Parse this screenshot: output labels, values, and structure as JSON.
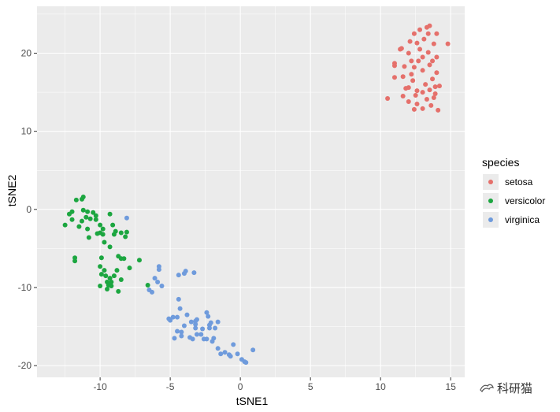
{
  "chart_data": {
    "type": "scatter",
    "title": "",
    "xlabel": "tSNE1",
    "ylabel": "tSNE2",
    "xlim": [
      -14.5,
      16
    ],
    "ylim": [
      -21.5,
      26
    ],
    "x_ticks": [
      -10,
      -5,
      0,
      5,
      10,
      15
    ],
    "x_tick_labels": [
      "-10",
      "-5",
      "0",
      "5",
      "10",
      "15"
    ],
    "y_ticks": [
      -20,
      -10,
      0,
      10,
      20
    ],
    "y_tick_labels": [
      "-20",
      "-10",
      "0",
      "10",
      "20"
    ],
    "grid": true,
    "legend": {
      "title": "species",
      "position": "right"
    },
    "colors": {
      "setosa": "#e5706b",
      "versicolor": "#1ca640",
      "virginica": "#6f9bdc",
      "panel": "#ebebeb",
      "grid": "#ffffff"
    },
    "series": [
      {
        "name": "setosa",
        "points": [
          [
            10.5,
            14.2
          ],
          [
            11,
            16.9
          ],
          [
            11,
            18.4
          ],
          [
            11,
            18.7
          ],
          [
            11.4,
            20.5
          ],
          [
            11.5,
            20.6
          ],
          [
            11.6,
            17
          ],
          [
            11.6,
            14.5
          ],
          [
            11.7,
            18.3
          ],
          [
            11.8,
            15.5
          ],
          [
            12,
            13.8
          ],
          [
            12,
            15.6
          ],
          [
            12,
            20
          ],
          [
            12.1,
            21.5
          ],
          [
            12.2,
            17.3
          ],
          [
            12.2,
            19
          ],
          [
            12.3,
            16.5
          ],
          [
            12.4,
            12.8
          ],
          [
            12.4,
            18.2
          ],
          [
            12.4,
            22.5
          ],
          [
            12.5,
            14.6
          ],
          [
            12.6,
            15.2
          ],
          [
            12.6,
            21.3
          ],
          [
            12.6,
            13.5
          ],
          [
            12.7,
            19
          ],
          [
            12.8,
            20.5
          ],
          [
            12.8,
            23
          ],
          [
            13,
            12.9
          ],
          [
            13,
            15
          ],
          [
            13,
            17.8
          ],
          [
            13,
            19.5
          ],
          [
            13.1,
            21.8
          ],
          [
            13.2,
            16
          ],
          [
            13.3,
            14.1
          ],
          [
            13.3,
            23.3
          ],
          [
            13.4,
            22.5
          ],
          [
            13.4,
            20.1
          ],
          [
            13.5,
            18.5
          ],
          [
            13.5,
            15.3
          ],
          [
            13.5,
            23.5
          ],
          [
            13.6,
            13.3
          ],
          [
            13.7,
            16.7
          ],
          [
            13.7,
            19
          ],
          [
            13.8,
            14.3
          ],
          [
            13.8,
            21.2
          ],
          [
            13.9,
            14.8
          ],
          [
            13.9,
            15.7
          ],
          [
            14,
            17.5
          ],
          [
            14,
            19.5
          ],
          [
            14,
            22.5
          ],
          [
            14.1,
            12.7
          ],
          [
            14.2,
            15.8
          ],
          [
            14.8,
            21.2
          ]
        ]
      },
      {
        "name": "versicolor",
        "points": [
          [
            -12.5,
            -2
          ],
          [
            -12.2,
            -0.6
          ],
          [
            -12,
            -1.3
          ],
          [
            -12,
            -0.3
          ],
          [
            -11.8,
            -6.6
          ],
          [
            -11.8,
            -6.2
          ],
          [
            -11.7,
            1.2
          ],
          [
            -11.5,
            -2.2
          ],
          [
            -11.3,
            1.3
          ],
          [
            -11.3,
            -1.5
          ],
          [
            -11.2,
            -0.1
          ],
          [
            -11.2,
            1.6
          ],
          [
            -11,
            -1
          ],
          [
            -10.9,
            -0.3
          ],
          [
            -10.9,
            -2.5
          ],
          [
            -10.8,
            -3.6
          ],
          [
            -10.7,
            -1.2
          ],
          [
            -10.5,
            -0.4
          ],
          [
            -10.3,
            -1.3
          ],
          [
            -10.3,
            -0.8
          ],
          [
            -10.2,
            -3.1
          ],
          [
            -10,
            -2
          ],
          [
            -10,
            -3
          ],
          [
            -10,
            -7.3
          ],
          [
            -10,
            -9.8
          ],
          [
            -9.9,
            -6.2
          ],
          [
            -9.9,
            -8.3
          ],
          [
            -9.8,
            -2.5
          ],
          [
            -9.8,
            -3.2
          ],
          [
            -9.7,
            -4.2
          ],
          [
            -9.7,
            -7.8
          ],
          [
            -9.6,
            -8.5
          ],
          [
            -9.5,
            -9.3
          ],
          [
            -9.5,
            -10.2
          ],
          [
            -9.4,
            -9.7
          ],
          [
            -9.3,
            -0.6
          ],
          [
            -9.3,
            -4.8
          ],
          [
            -9.3,
            -8.8
          ],
          [
            -9.2,
            -9.3
          ],
          [
            -9.2,
            -9.8
          ],
          [
            -9.1,
            -2
          ],
          [
            -9,
            -3.2
          ],
          [
            -9,
            -8.5
          ],
          [
            -8.9,
            -2.8
          ],
          [
            -8.8,
            -7.8
          ],
          [
            -8.7,
            -6
          ],
          [
            -8.7,
            -10.5
          ],
          [
            -8.5,
            -3
          ],
          [
            -8.5,
            -6.3
          ],
          [
            -8.5,
            -9
          ],
          [
            -8.3,
            -6.3
          ],
          [
            -8.2,
            -3.5
          ],
          [
            -8.1,
            -2.9
          ],
          [
            -7.9,
            -7.5
          ],
          [
            -7.2,
            -6.5
          ],
          [
            -6.6,
            -9.7
          ]
        ]
      },
      {
        "name": "virginica",
        "points": [
          [
            -8.1,
            -1.1
          ],
          [
            -6.5,
            -10.3
          ],
          [
            -6.3,
            -10.6
          ],
          [
            -6.1,
            -8.8
          ],
          [
            -5.9,
            -9.3
          ],
          [
            -5.8,
            -7.7
          ],
          [
            -5.8,
            -7.3
          ],
          [
            -5.6,
            -9.8
          ],
          [
            -5.1,
            -14
          ],
          [
            -5,
            -14.2
          ],
          [
            -4.8,
            -13.8
          ],
          [
            -4.7,
            -16.5
          ],
          [
            -4.5,
            -13.8
          ],
          [
            -4.5,
            -15.6
          ],
          [
            -4.4,
            -11.5
          ],
          [
            -4.4,
            -8.4
          ],
          [
            -4.3,
            -12.7
          ],
          [
            -4.2,
            -15.7
          ],
          [
            -4.2,
            -16.2
          ],
          [
            -4,
            -14.9
          ],
          [
            -4,
            -8.2
          ],
          [
            -3.9,
            -7.9
          ],
          [
            -3.8,
            -13.5
          ],
          [
            -3.6,
            -16.4
          ],
          [
            -3.5,
            -14.4
          ],
          [
            -3.4,
            -16.6
          ],
          [
            -3.3,
            -8.1
          ],
          [
            -3.2,
            -14.3
          ],
          [
            -3.2,
            -14.7
          ],
          [
            -3.2,
            -15.2
          ],
          [
            -3.1,
            -14.1
          ],
          [
            -3.1,
            -16
          ],
          [
            -2.8,
            -16
          ],
          [
            -2.7,
            -15.3
          ],
          [
            -2.6,
            -16.6
          ],
          [
            -2.4,
            -16.6
          ],
          [
            -2.4,
            -13.2
          ],
          [
            -2.3,
            -13.7
          ],
          [
            -2.2,
            -14.8
          ],
          [
            -2.2,
            -15.2
          ],
          [
            -2.1,
            -14.5
          ],
          [
            -2,
            -16.9
          ],
          [
            -1.9,
            -16.5
          ],
          [
            -1.8,
            -15.2
          ],
          [
            -1.6,
            -14.4
          ],
          [
            -1.6,
            -17.8
          ],
          [
            -1.4,
            -18.5
          ],
          [
            -1.1,
            -18.3
          ],
          [
            -0.8,
            -18.6
          ],
          [
            -0.7,
            -18.8
          ],
          [
            -0.5,
            -17.3
          ],
          [
            -0.2,
            -18.5
          ],
          [
            0.1,
            -19.2
          ],
          [
            0.3,
            -19.5
          ],
          [
            0.4,
            -19.6
          ],
          [
            0.9,
            -18
          ]
        ]
      }
    ]
  },
  "watermark": {
    "text": "科研猫"
  }
}
